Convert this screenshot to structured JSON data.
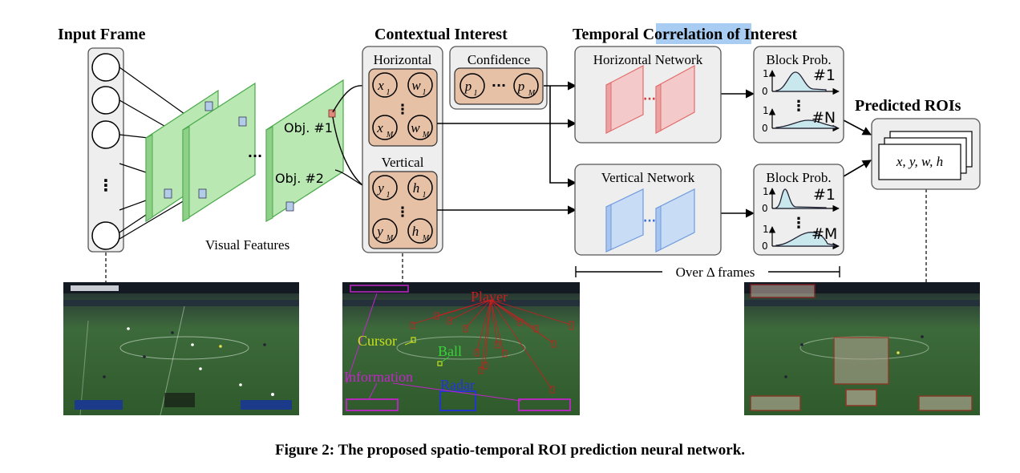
{
  "headings": {
    "input_frame": "Input Frame",
    "contextual_interest": "Contextual Interest",
    "temporal_prefix": "Temporal ",
    "temporal_highlight": "Correlation",
    "temporal_suffix": " of Interest",
    "predicted_rois": "Predicted ROIs"
  },
  "input": {
    "dots": "⋮",
    "visual_features": "Visual Features",
    "map_dots": "...",
    "obj1": "Obj. #1",
    "obj2": "Obj. #2"
  },
  "contextual": {
    "horizontal": "Horizontal",
    "vertical": "Vertical",
    "confidence": "Confidence",
    "x1_base": "x",
    "x1_sub": "1",
    "w1_base": "w",
    "w1_sub": "1",
    "xm_base": "x",
    "xm_sub": "M",
    "wm_base": "w",
    "wm_sub": "M",
    "y1_base": "y",
    "y1_sub": "1",
    "h1_base": "h",
    "h1_sub": "1",
    "ym_base": "y",
    "ym_sub": "M",
    "hm_base": "h",
    "hm_sub": "M",
    "p1_base": "p",
    "p1_sub": "1",
    "pm_base": "p",
    "pm_sub": "M",
    "conf_dots": "···",
    "vdots": "⋮"
  },
  "temporal": {
    "horizontal_network": "Horizontal Network",
    "vertical_network": "Vertical Network",
    "net_dots": "···",
    "block_prob": "Block Prob.",
    "axis_one": "1",
    "axis_zero": "0",
    "h_top": "#1",
    "h_bottom": "#N",
    "v_top": "#1",
    "v_bottom": "#M",
    "vdots": "⋮",
    "over_frames": "Over Δ frames"
  },
  "output": {
    "coords": "x, y, w, h"
  },
  "screens": {
    "annotations": {
      "player": "Player",
      "cursor": "Cursor",
      "ball": "Ball",
      "information": "Information",
      "radar": "Radar"
    }
  },
  "caption": "Figure 2: The proposed spatio-temporal ROI prediction neural network.",
  "colors": {
    "green_fill": "#b9e8b3",
    "green_stroke": "#4aa84a",
    "peach": "#e6c1a6",
    "red_net": "#e46b6b",
    "blue_net": "#6d9ae0",
    "highlight": "#a9cdf2",
    "player": "#c81e1e",
    "cursor": "#c8e01e",
    "ball": "#3ad23a",
    "information": "#c026c8",
    "radar": "#2233dd"
  }
}
